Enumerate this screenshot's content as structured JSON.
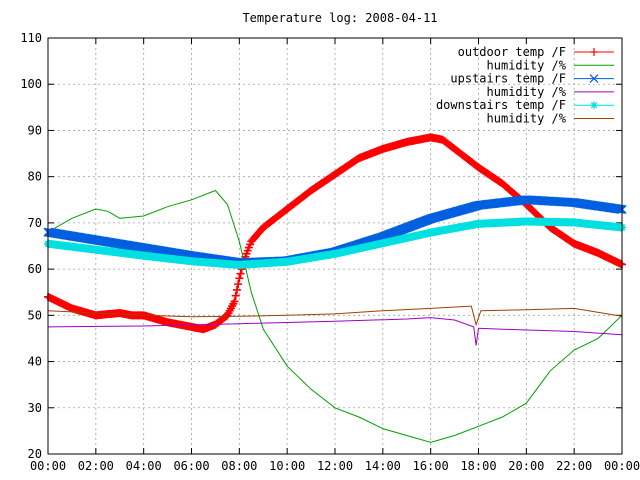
{
  "chart_data": {
    "type": "line",
    "title": "Temperature log: 2008-04-11",
    "xlabel": "",
    "ylabel": "",
    "xlim": [
      0,
      24
    ],
    "ylim": [
      20,
      110
    ],
    "grid": true,
    "legend_position": "top-right",
    "x_tick_labels": [
      "00:00",
      "02:00",
      "04:00",
      "06:00",
      "08:00",
      "10:00",
      "12:00",
      "14:00",
      "16:00",
      "18:00",
      "20:00",
      "22:00",
      "00:00"
    ],
    "y_ticks": [
      20,
      30,
      40,
      50,
      60,
      70,
      80,
      90,
      100,
      110
    ],
    "series": [
      {
        "name": "outdoor temp /F",
        "color": "#ff0000",
        "marker": "plus",
        "x": [
          0,
          1,
          2,
          3,
          3.5,
          4,
          5,
          6,
          6.5,
          7,
          7.5,
          7.8,
          8.0,
          8.2,
          8.5,
          9,
          10,
          11,
          12,
          13,
          14,
          15,
          16,
          16.5,
          17,
          18,
          19,
          20,
          21,
          22,
          23,
          24
        ],
        "y": [
          54,
          51.5,
          50,
          50.5,
          50,
          50,
          48.5,
          47.5,
          47,
          48,
          50,
          53,
          58,
          62,
          66,
          69,
          73,
          77,
          80.5,
          84,
          86,
          87.5,
          88.5,
          88,
          86,
          82,
          78.5,
          74,
          69,
          65.5,
          63.5,
          61
        ]
      },
      {
        "name": "humidity /%",
        "color": "#00a000",
        "marker": "none",
        "x": [
          0,
          1,
          2,
          2.5,
          3,
          4,
          5,
          6,
          7,
          7.5,
          8,
          8.5,
          9,
          10,
          11,
          12,
          13,
          14,
          15,
          16,
          17,
          18,
          19,
          20,
          21,
          22,
          23,
          24
        ],
        "y": [
          68,
          71,
          73,
          72.5,
          71,
          71.5,
          73.5,
          75,
          77,
          74,
          66,
          55,
          47,
          39,
          34,
          30,
          28,
          25.5,
          24,
          22.5,
          24,
          26,
          28,
          31,
          38,
          42.5,
          45,
          50
        ]
      },
      {
        "name": "upstairs temp /F",
        "color": "#0060e0",
        "marker": "x",
        "x": [
          0,
          2,
          4,
          6,
          8,
          10,
          12,
          14,
          16,
          18,
          20,
          22,
          24
        ],
        "y": [
          68,
          66.3,
          64.6,
          62.9,
          61.4,
          61.8,
          63.7,
          67,
          70.9,
          73.8,
          75,
          74.4,
          72.9
        ]
      },
      {
        "name": "humidity /%",
        "color": "#a000c0",
        "marker": "none",
        "x": [
          0,
          4,
          8,
          12,
          15,
          16,
          17,
          17.8,
          17.9,
          18,
          19,
          22,
          24
        ],
        "y": [
          47.5,
          47.7,
          48.2,
          48.7,
          49.2,
          49.5,
          49,
          47.5,
          43.5,
          47.2,
          47,
          46.5,
          45.8
        ]
      },
      {
        "name": "downstairs temp /F",
        "color": "#00e0e0",
        "marker": "star",
        "x": [
          0,
          2,
          4,
          6,
          8,
          10,
          12,
          14,
          16,
          18,
          20,
          22,
          24
        ],
        "y": [
          65.5,
          64.2,
          62.9,
          61.7,
          60.9,
          61.6,
          63.3,
          65.6,
          67.9,
          69.8,
          70.3,
          70.1,
          69
        ]
      },
      {
        "name": "humidity /%",
        "color": "#a04000",
        "marker": "none",
        "x": [
          0,
          2,
          4,
          6,
          8,
          10,
          12,
          14,
          16,
          17.7,
          17.9,
          18.1,
          20,
          22,
          24
        ],
        "y": [
          51,
          50.5,
          50,
          49.7,
          49.8,
          50,
          50.3,
          51,
          51.5,
          52,
          48,
          51,
          51.2,
          51.5,
          49.8
        ]
      }
    ]
  }
}
